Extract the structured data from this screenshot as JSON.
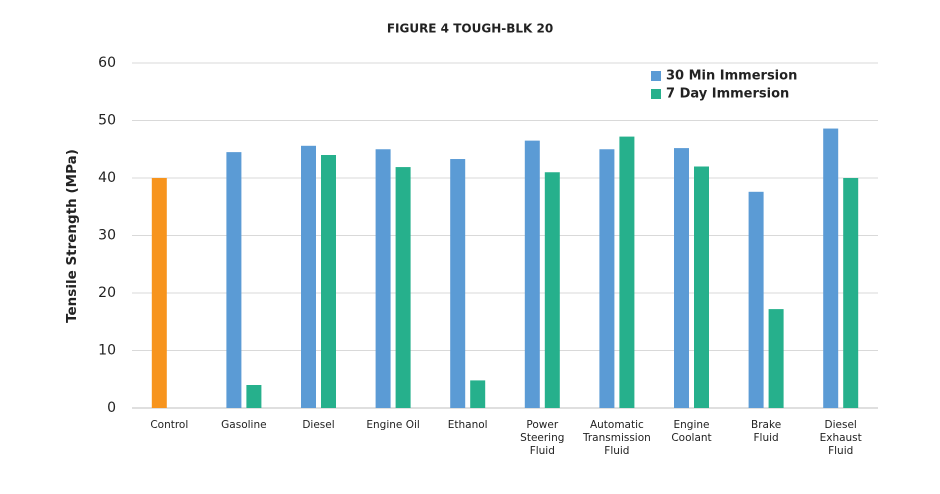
{
  "chart_data": {
    "type": "bar",
    "title": "FIGURE 4 TOUGH-BLK 20",
    "y_label": "Tensile Strength (MPa)",
    "categories": [
      "Control",
      "Gasoline",
      "Diesel",
      "Engine Oil",
      "Ethanol",
      "Power\nSteering\nFluid",
      "Automatic\nTransmission\nFluid",
      "Engine\nCoolant",
      "Brake\nFluid",
      "Diesel\nExhaust\nFluid"
    ],
    "series": [
      {
        "name": "30 Min Immersion",
        "color": "#5b9bd5",
        "point_colors": [
          "#f7941d",
          "#5b9bd5",
          "#5b9bd5",
          "#5b9bd5",
          "#5b9bd5",
          "#5b9bd5",
          "#5b9bd5",
          "#5b9bd5",
          "#5b9bd5",
          "#5b9bd5"
        ],
        "values": [
          40,
          44.5,
          45.6,
          45,
          43.3,
          46.5,
          45,
          45.2,
          37.6,
          48.6
        ]
      },
      {
        "name": "7 Day Immersion",
        "color": "#26b08c",
        "values": [
          null,
          4,
          44,
          41.9,
          4.8,
          41,
          47.2,
          42,
          17.2,
          40
        ]
      }
    ],
    "ylim": [
      0,
      60
    ],
    "yticks": [
      0,
      10,
      20,
      30,
      40,
      50,
      60
    ],
    "grid": true,
    "legend": "top-right"
  }
}
